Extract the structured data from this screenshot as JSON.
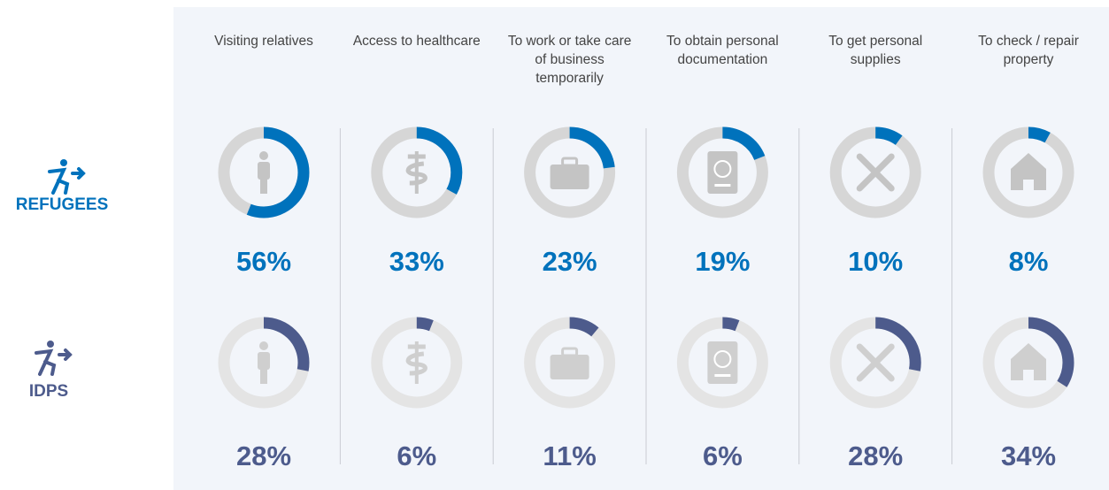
{
  "chart_data": {
    "type": "donut",
    "categories": [
      "Visiting relatives",
      "Access to healthcare",
      "To work or take care of business temporarily",
      "To obtain personal documentation",
      "To get personal supplies",
      "To check / repair property"
    ],
    "series": [
      {
        "name": "REFUGEES",
        "color": "#0072bc",
        "values": [
          56,
          33,
          23,
          19,
          10,
          8
        ],
        "value_labels": [
          "56%",
          "33%",
          "23%",
          "19%",
          "10%",
          "8%"
        ]
      },
      {
        "name": "IDPS",
        "color": "#4d5b8c",
        "values": [
          28,
          6,
          11,
          6,
          28,
          34
        ],
        "value_labels": [
          "28%",
          "6%",
          "11%",
          "6%",
          "28%",
          "34%"
        ]
      }
    ]
  }
}
